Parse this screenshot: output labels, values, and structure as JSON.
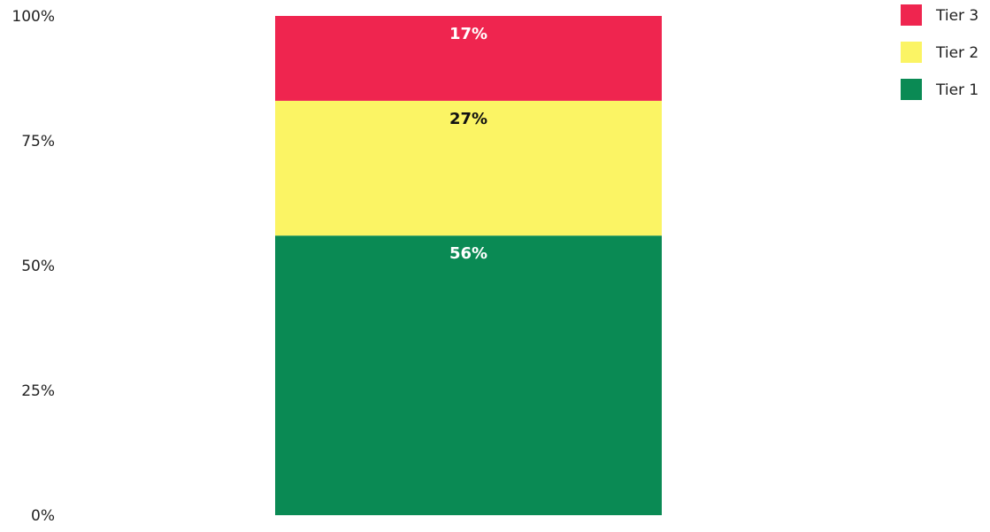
{
  "chart_data": {
    "type": "bar",
    "stacked": true,
    "categories": [
      ""
    ],
    "ylim": [
      0,
      100
    ],
    "y_ticks": [
      0,
      25,
      50,
      75,
      100
    ],
    "y_tick_labels": [
      "0%",
      "25%",
      "50%",
      "75%",
      "100%"
    ],
    "grid": false,
    "legend_position": "top-right",
    "series": [
      {
        "name": "Tier 1",
        "values": [
          56
        ],
        "label": "56%",
        "color": "#0a8a54",
        "label_color": "#ffffff"
      },
      {
        "name": "Tier 2",
        "values": [
          27
        ],
        "label": "27%",
        "color": "#fbf464",
        "label_color": "#111111"
      },
      {
        "name": "Tier 3",
        "values": [
          17
        ],
        "label": "17%",
        "color": "#ef254f",
        "label_color": "#ffffff"
      }
    ],
    "legend_order": [
      "Tier 3",
      "Tier 2",
      "Tier 1"
    ]
  }
}
